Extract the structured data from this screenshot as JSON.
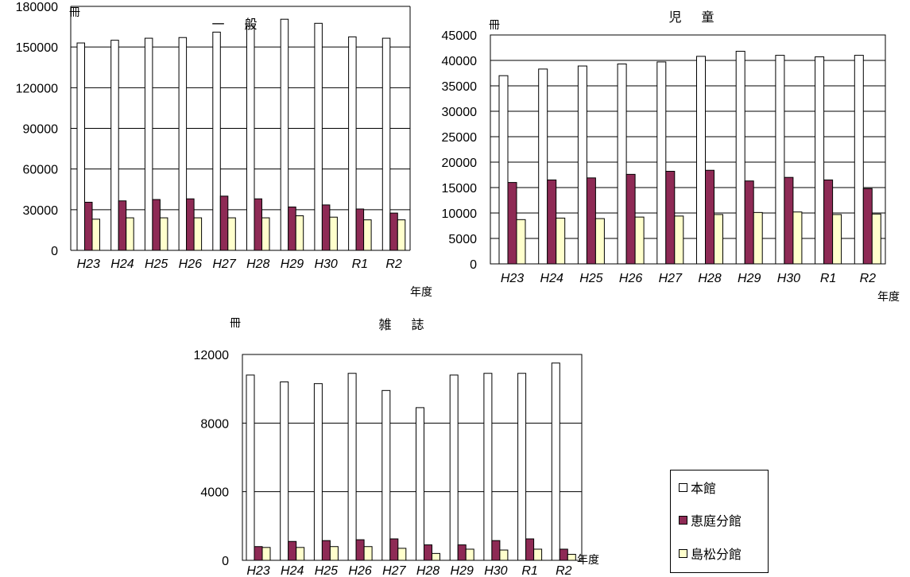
{
  "categories": [
    "H23",
    "H24",
    "H25",
    "H26",
    "H27",
    "H28",
    "H29",
    "H30",
    "R1",
    "R2"
  ],
  "colors": {
    "honkan": "#ffffff",
    "eniwa": "#8e2a55",
    "shimamatsu": "#ffffcc"
  },
  "legend": [
    "本館",
    "恵庭分館",
    "島松分館"
  ],
  "chart_data": [
    {
      "type": "bar",
      "title": "一 般",
      "ylabel": "冊",
      "xlabel": "年度",
      "ylim": [
        0,
        180000
      ],
      "yticks": [
        0,
        30000,
        60000,
        90000,
        120000,
        150000,
        180000
      ],
      "categories": [
        "H23",
        "H24",
        "H25",
        "H26",
        "H27",
        "H28",
        "H29",
        "H30",
        "R1",
        "R2"
      ],
      "series": [
        {
          "name": "本館",
          "values": [
            153000,
            155000,
            156500,
            157000,
            161000,
            165500,
            170500,
            167500,
            157500,
            156500
          ]
        },
        {
          "name": "恵庭分館",
          "values": [
            35500,
            36500,
            37500,
            38000,
            40000,
            38000,
            32000,
            33500,
            30500,
            27500
          ]
        },
        {
          "name": "島松分館",
          "values": [
            23000,
            24000,
            24000,
            24000,
            24000,
            24000,
            25500,
            24500,
            22500,
            22500
          ]
        }
      ]
    },
    {
      "type": "bar",
      "title": "児 童",
      "ylabel": "冊",
      "xlabel": "年度",
      "ylim": [
        0,
        45000
      ],
      "yticks": [
        0,
        5000,
        10000,
        15000,
        20000,
        25000,
        30000,
        35000,
        40000,
        45000
      ],
      "categories": [
        "H23",
        "H24",
        "H25",
        "H26",
        "H27",
        "H28",
        "H29",
        "H30",
        "R1",
        "R2"
      ],
      "series": [
        {
          "name": "本館",
          "values": [
            37000,
            38300,
            38900,
            39300,
            39700,
            40800,
            41800,
            41000,
            40700,
            41000
          ]
        },
        {
          "name": "恵庭分館",
          "values": [
            16000,
            16500,
            16900,
            17600,
            18200,
            18400,
            16300,
            17000,
            16500,
            14800
          ]
        },
        {
          "name": "島松分館",
          "values": [
            8700,
            9000,
            8900,
            9200,
            9400,
            9700,
            10100,
            10200,
            9700,
            9800
          ]
        }
      ]
    },
    {
      "type": "bar",
      "title": "雑 誌",
      "ylabel": "冊",
      "xlabel": "年度",
      "ylim": [
        0,
        12000
      ],
      "yticks": [
        0,
        4000,
        8000,
        12000
      ],
      "categories": [
        "H23",
        "H24",
        "H25",
        "H26",
        "H27",
        "H28",
        "H29",
        "H30",
        "R1",
        "R2"
      ],
      "series": [
        {
          "name": "本館",
          "values": [
            10800,
            10400,
            10300,
            10900,
            9900,
            8900,
            10800,
            10900,
            10900,
            11500
          ]
        },
        {
          "name": "恵庭分館",
          "values": [
            800,
            1100,
            1150,
            1200,
            1250,
            900,
            900,
            1150,
            1250,
            650
          ]
        },
        {
          "name": "島松分館",
          "values": [
            750,
            750,
            800,
            800,
            700,
            400,
            650,
            600,
            650,
            350
          ]
        }
      ]
    }
  ]
}
